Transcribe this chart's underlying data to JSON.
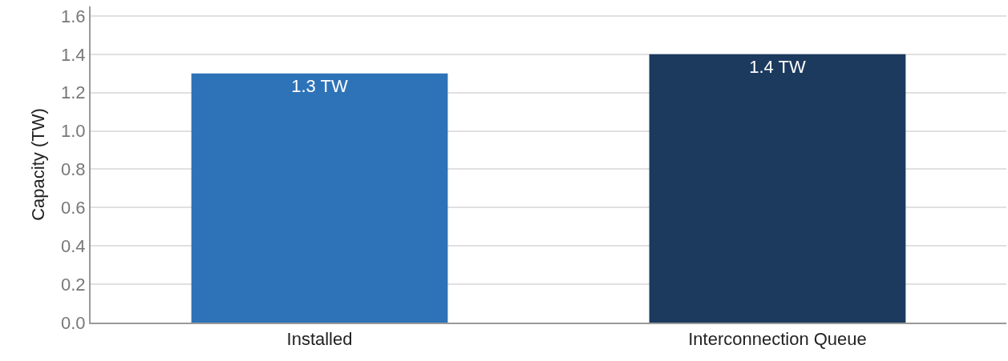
{
  "chart_data": {
    "type": "bar",
    "ylabel": "Capacity (TW)",
    "categories": [
      "Installed",
      "Interconnection Queue"
    ],
    "values": [
      1.3,
      1.4
    ],
    "colors": [
      "#2e73b8",
      "#1c3a5e"
    ],
    "value_labels": [
      "1.3 TW",
      "1.4 TW"
    ],
    "ylim": [
      0,
      1.65
    ],
    "yticks": [
      {
        "value": 0,
        "label": "0.0"
      },
      {
        "value": 0.2,
        "label": "0.2"
      },
      {
        "value": 0.4,
        "label": "0.4"
      },
      {
        "value": 0.6,
        "label": "0.6"
      },
      {
        "value": 0.8,
        "label": "0.8"
      },
      {
        "value": 1.0,
        "label": "1.0"
      },
      {
        "value": 1.2,
        "label": "1.2"
      },
      {
        "value": 1.4,
        "label": "1.4"
      },
      {
        "value": 1.6,
        "label": "1.6"
      }
    ],
    "grid": "y"
  }
}
